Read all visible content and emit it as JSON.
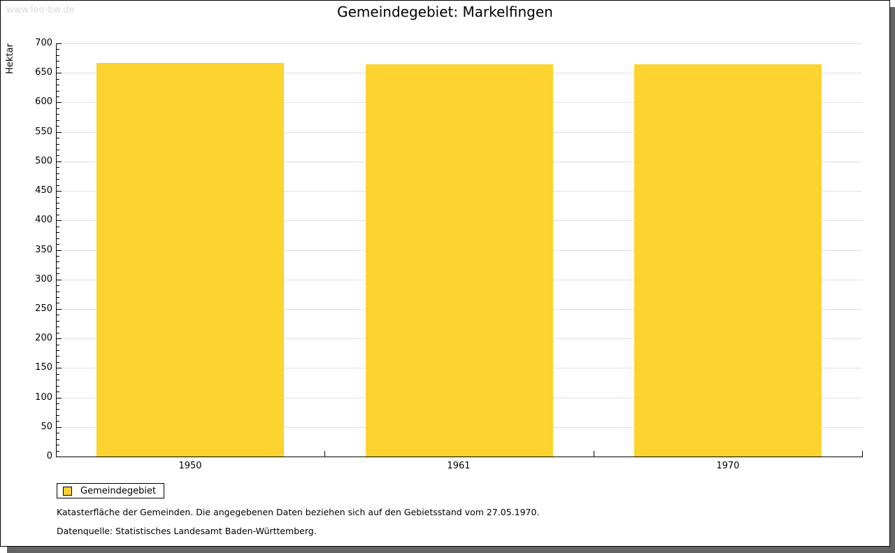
{
  "page": {
    "watermark": "www.leo-bw.de"
  },
  "chart_data": {
    "type": "bar",
    "title": "Gemeindegebiet: Markelfingen",
    "xlabel": "",
    "ylabel": "Hektar",
    "categories": [
      "1950",
      "1961",
      "1970"
    ],
    "series": [
      {
        "name": "Gemeindegebiet",
        "color": "#FCD32F",
        "values": [
          667,
          665,
          665
        ]
      }
    ],
    "ylim": [
      0,
      700
    ],
    "ytick_major": 50,
    "ytick_minor": 10,
    "grid": "horizontal-major",
    "gridline_color": "#E0E0E0",
    "legend_position": "bottom-left"
  },
  "footer": {
    "note": "Katasterfläche der Gemeinden. Die angegebenen Daten beziehen sich auf den Gebietsstand vom 27.05.1970.",
    "source": "Datenquelle: Statistisches Landesamt Baden-Württemberg."
  }
}
